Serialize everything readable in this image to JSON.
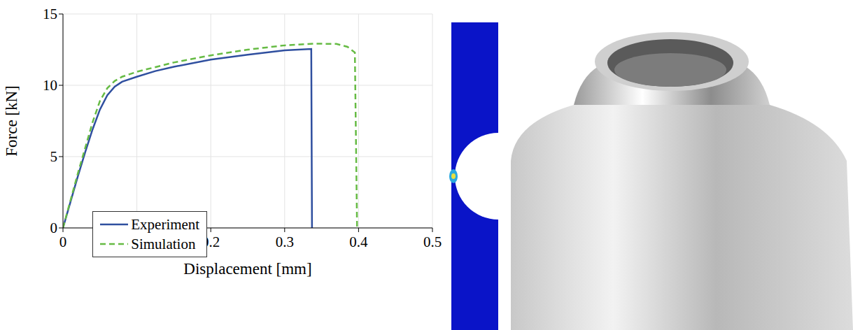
{
  "chart_data": {
    "type": "line",
    "x_label": "Displacement [mm]",
    "y_label": "Force [kN]",
    "xlim": [
      0,
      0.5
    ],
    "xticks": [
      0,
      0.1,
      0.2,
      0.3,
      0.4,
      0.5
    ],
    "ylim": [
      0,
      15
    ],
    "yticks": [
      0,
      5,
      10,
      15
    ],
    "grid": true,
    "legend": "lower left",
    "series": [
      {
        "name": "Experiment",
        "color": "#2f4f9f",
        "line_style": "solid",
        "x": [
          0,
          0.01,
          0.02,
          0.03,
          0.04,
          0.05,
          0.06,
          0.07,
          0.08,
          0.1,
          0.125,
          0.15,
          0.2,
          0.25,
          0.3,
          0.336,
          0.337
        ],
        "values": [
          0,
          1.8,
          3.6,
          5.3,
          6.9,
          8.3,
          9.3,
          9.9,
          10.25,
          10.6,
          11.0,
          11.3,
          11.8,
          12.15,
          12.45,
          12.55,
          0
        ]
      },
      {
        "name": "Simulation",
        "color": "#66bb44",
        "line_style": "dashed",
        "x": [
          0,
          0.01,
          0.02,
          0.03,
          0.04,
          0.05,
          0.06,
          0.07,
          0.08,
          0.1,
          0.15,
          0.2,
          0.25,
          0.3,
          0.34,
          0.37,
          0.385,
          0.395,
          0.398
        ],
        "values": [
          0,
          1.9,
          3.8,
          5.6,
          7.4,
          8.9,
          9.8,
          10.3,
          10.6,
          10.95,
          11.6,
          12.1,
          12.5,
          12.8,
          12.92,
          12.9,
          12.7,
          12.3,
          0
        ]
      }
    ]
  }
}
